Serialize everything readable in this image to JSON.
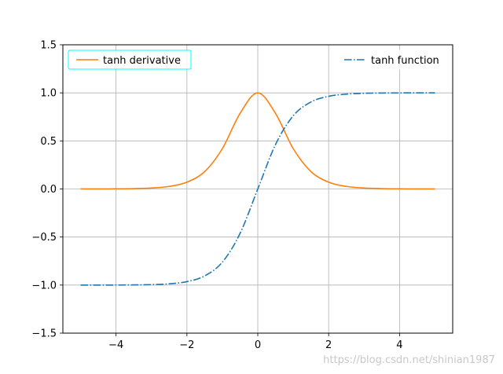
{
  "chart_data": {
    "type": "line",
    "title": "",
    "xlabel": "",
    "ylabel": "",
    "xlim": [
      -5.5,
      5.5
    ],
    "ylim": [
      -1.5,
      1.5
    ],
    "grid": true,
    "x_ticks": [
      -4,
      -2,
      0,
      2,
      4
    ],
    "x_tick_labels": [
      "−4",
      "−2",
      "0",
      "2",
      "4"
    ],
    "y_ticks": [
      -1.5,
      -1.0,
      -0.5,
      0.0,
      0.5,
      1.0,
      1.5
    ],
    "y_tick_labels": [
      "−1.5",
      "−1.0",
      "−0.5",
      "0.0",
      "0.5",
      "1.0",
      "1.5"
    ],
    "x": [
      -5.0,
      -4.5,
      -4.0,
      -3.5,
      -3.0,
      -2.5,
      -2.0,
      -1.5,
      -1.0,
      -0.5,
      0.0,
      0.5,
      1.0,
      1.5,
      2.0,
      2.5,
      3.0,
      3.5,
      4.0,
      4.5,
      5.0
    ],
    "series": [
      {
        "name": "tanh derivative",
        "color": "#ff7f0e",
        "linestyle": "solid",
        "legend_location": "upper left",
        "values": [
          0.0002,
          0.0005,
          0.0013,
          0.0036,
          0.0099,
          0.0266,
          0.0707,
          0.1807,
          0.42,
          0.7864,
          1.0,
          0.7864,
          0.42,
          0.1807,
          0.0707,
          0.0266,
          0.0099,
          0.0036,
          0.0013,
          0.0005,
          0.0002
        ]
      },
      {
        "name": "tanh function",
        "color": "#1f77b4",
        "linestyle": "dashdot",
        "legend_location": "upper right",
        "values": [
          -0.9999,
          -0.9998,
          -0.9993,
          -0.9982,
          -0.9951,
          -0.9866,
          -0.964,
          -0.9051,
          -0.7616,
          -0.4621,
          0.0,
          0.4621,
          0.7616,
          0.9051,
          0.964,
          0.9866,
          0.9951,
          0.9982,
          0.9993,
          0.9998,
          0.9999
        ]
      }
    ]
  },
  "watermark": "https://blog.csdn.net/shinian1987"
}
